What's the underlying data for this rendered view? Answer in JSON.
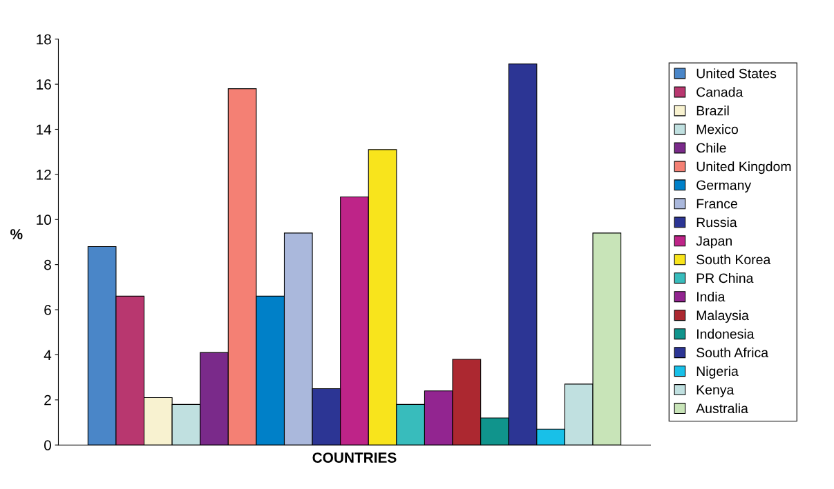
{
  "chart_data": {
    "type": "bar",
    "xlabel": "COUNTRIES",
    "ylabel": "%",
    "categories": [
      null
    ],
    "series": [
      {
        "name": "United States",
        "color": "#4a86c8",
        "values": [
          8.8
        ]
      },
      {
        "name": "Canada",
        "color": "#b8376f",
        "values": [
          6.6
        ]
      },
      {
        "name": "Brazil",
        "color": "#f8f2d0",
        "values": [
          2.1
        ]
      },
      {
        "name": "Mexico",
        "color": "#c0e0e0",
        "values": [
          1.8
        ]
      },
      {
        "name": "Chile",
        "color": "#7a2a8a",
        "values": [
          4.1
        ]
      },
      {
        "name": "United Kingdom",
        "color": "#f48074",
        "values": [
          15.8
        ]
      },
      {
        "name": "Germany",
        "color": "#0080c8",
        "values": [
          6.6
        ]
      },
      {
        "name": "France",
        "color": "#aab8dc",
        "values": [
          9.4
        ]
      },
      {
        "name": "Russia",
        "color": "#2c3594",
        "values": [
          2.5
        ]
      },
      {
        "name": "Japan",
        "color": "#be2488",
        "values": [
          11.0
        ]
      },
      {
        "name": "South Korea",
        "color": "#f8e41c",
        "values": [
          13.1
        ]
      },
      {
        "name": "PR China",
        "color": "#38bcbc",
        "values": [
          1.8
        ]
      },
      {
        "name": "India",
        "color": "#922590",
        "values": [
          2.4
        ]
      },
      {
        "name": "Malaysia",
        "color": "#ac2830",
        "values": [
          3.8
        ]
      },
      {
        "name": "Indonesia",
        "color": "#10948c",
        "values": [
          1.2
        ]
      },
      {
        "name": "South Africa",
        "color": "#2c3594",
        "values": [
          16.9
        ]
      },
      {
        "name": "Nigeria",
        "color": "#18c0e8",
        "values": [
          0.7
        ]
      },
      {
        "name": "Kenya",
        "color": "#c0e0e0",
        "values": [
          2.7
        ]
      },
      {
        "name": "Australia",
        "color": "#c8e4b8",
        "values": [
          9.4
        ]
      }
    ],
    "ylim": [
      0,
      18
    ],
    "yticks": [
      0,
      2,
      4,
      6,
      8,
      10,
      12,
      14,
      16,
      18
    ],
    "grid": false,
    "legend": "right"
  }
}
